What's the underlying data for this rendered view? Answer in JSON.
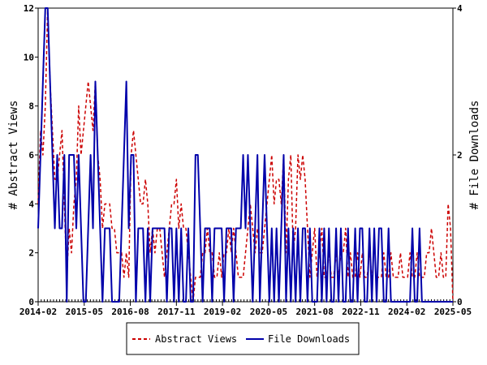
{
  "chart_data": {
    "type": "line",
    "x_ticks": [
      "2014-02",
      "2015-05",
      "2016-08",
      "2017-11",
      "2019-02",
      "2020-05",
      "2021-08",
      "2022-11",
      "2024-02",
      "2025-05"
    ],
    "x_range": [
      "2014-02",
      "2025-05"
    ],
    "ylabel_left": "# Abstract Views",
    "ylabel_right": "# File Downloads",
    "ylim_left": [
      0,
      12
    ],
    "ylim_right": [
      0,
      4
    ],
    "y_ticks_left": [
      "0",
      "2",
      "4",
      "6",
      "8",
      "10",
      "12"
    ],
    "y_ticks_right": [
      "0",
      "2",
      "4"
    ],
    "legend_position": "bottom-center",
    "series": [
      {
        "name": "Abstract Views",
        "axis": "left",
        "color": "#cc0000",
        "style": "dashed",
        "values": [
          4,
          7,
          6,
          8,
          12,
          9,
          7,
          5,
          5,
          6,
          7,
          4,
          1,
          3,
          2,
          4,
          5,
          8,
          6,
          7,
          8,
          9,
          8,
          7,
          9,
          6,
          5,
          3,
          4,
          4,
          4,
          3,
          3,
          2,
          2,
          2,
          1,
          2,
          1,
          6,
          7,
          6,
          5,
          4,
          4,
          5,
          4,
          2,
          3,
          2,
          3,
          3,
          2,
          1,
          2,
          3,
          4,
          4,
          5,
          3,
          4,
          3,
          3,
          2,
          1,
          0,
          1,
          1,
          1,
          2,
          2,
          3,
          2,
          2,
          1,
          1,
          2,
          1,
          2,
          2,
          3,
          2,
          3,
          2,
          1,
          1,
          1,
          2,
          3,
          4,
          3,
          2,
          3,
          2,
          2,
          3,
          4,
          5,
          6,
          4,
          5,
          5,
          4,
          6,
          2,
          5,
          6,
          2,
          3,
          6,
          5,
          6,
          5,
          3,
          1,
          2,
          3,
          1,
          2,
          3,
          1,
          1,
          2,
          1,
          1,
          2,
          1,
          2,
          2,
          3,
          1,
          2,
          1,
          1,
          2,
          1,
          2,
          1,
          1,
          2,
          1,
          1,
          1,
          1,
          1,
          2,
          1,
          1,
          2,
          1,
          1,
          1,
          2,
          1,
          1,
          1,
          2,
          1,
          1,
          2,
          1,
          1,
          1,
          2,
          2,
          3,
          2,
          1,
          1,
          2,
          1,
          1,
          4,
          3,
          0
        ]
      },
      {
        "name": "File Downloads",
        "axis": "right",
        "color": "#0000aa",
        "style": "solid",
        "values": [
          1,
          2,
          3,
          4,
          4,
          3,
          2,
          1,
          2,
          1,
          1,
          2,
          0,
          2,
          2,
          2,
          1,
          2,
          1,
          0,
          0,
          1,
          2,
          1,
          3,
          2,
          1,
          0,
          1,
          1,
          1,
          0,
          0,
          0,
          0,
          1,
          2,
          3,
          1,
          2,
          2,
          0,
          1,
          1,
          1,
          0,
          1,
          0,
          1,
          1,
          1,
          1,
          1,
          1,
          0,
          1,
          1,
          0,
          1,
          0,
          1,
          0,
          0,
          1,
          0,
          0,
          2,
          2,
          1,
          0,
          1,
          1,
          1,
          0,
          1,
          1,
          1,
          1,
          0,
          1,
          1,
          1,
          0,
          1,
          1,
          1,
          2,
          1,
          2,
          1,
          0,
          1,
          2,
          0,
          1,
          2,
          1,
          0,
          1,
          0,
          1,
          0,
          1,
          2,
          0,
          1,
          0,
          1,
          0,
          1,
          0,
          1,
          1,
          0,
          1,
          0,
          0,
          0,
          1,
          0,
          1,
          0,
          1,
          0,
          0,
          1,
          0,
          1,
          0,
          0,
          1,
          0,
          0,
          1,
          0,
          1,
          1,
          0,
          0,
          1,
          0,
          1,
          0,
          1,
          1,
          0,
          0,
          1,
          0,
          0,
          0,
          0,
          0,
          0,
          0,
          0,
          0,
          1,
          0,
          0,
          1,
          0,
          0,
          0,
          0,
          0,
          0,
          0,
          0,
          0,
          0,
          0,
          0,
          0,
          0
        ]
      }
    ]
  }
}
